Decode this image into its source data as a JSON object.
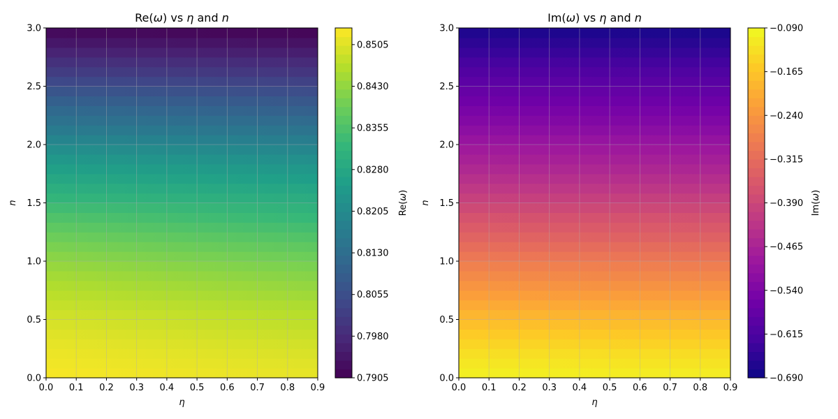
{
  "chart_data": [
    {
      "type": "heatmap",
      "panel_id": "re",
      "title": "Re(ω) vs η and n",
      "title_parts": [
        "Re(",
        "ω",
        ") vs ",
        "η",
        " and ",
        "n"
      ],
      "xlabel": "η",
      "ylabel": "n",
      "xlim": [
        0.0,
        0.9
      ],
      "ylim": [
        0.0,
        3.0
      ],
      "xticks": [
        "0.0",
        "0.1",
        "0.2",
        "0.3",
        "0.4",
        "0.5",
        "0.6",
        "0.7",
        "0.8",
        "0.9"
      ],
      "yticks": [
        "0.0",
        "0.5",
        "1.0",
        "1.5",
        "2.0",
        "2.5",
        "3.0"
      ],
      "grid": true,
      "colormap": "viridis",
      "z_range": [
        0.7905,
        0.8535
      ],
      "colorbar": {
        "label": "Re(ω)",
        "label_parts": [
          "Re(",
          "ω",
          ")"
        ],
        "ticks": [
          "0.7905",
          "0.7980",
          "0.8055",
          "0.8130",
          "0.8205",
          "0.8280",
          "0.8355",
          "0.8430",
          "0.8505"
        ]
      },
      "profile": {
        "n": [
          0.0,
          0.2,
          0.4,
          0.6,
          0.8,
          1.0,
          1.2,
          1.4,
          1.6,
          1.8,
          2.0,
          2.2,
          2.4,
          2.6,
          2.8,
          3.0
        ],
        "value_at_eta0": [
          0.853,
          0.852,
          0.8505,
          0.8485,
          0.846,
          0.843,
          0.8395,
          0.8355,
          0.8305,
          0.826,
          0.8205,
          0.8145,
          0.809,
          0.8025,
          0.7965,
          0.7912
        ],
        "value_at_eta09": [
          0.8515,
          0.85,
          0.848,
          0.846,
          0.843,
          0.84,
          0.836,
          0.832,
          0.828,
          0.8235,
          0.8185,
          0.8125,
          0.807,
          0.801,
          0.7955,
          0.7905
        ]
      }
    },
    {
      "type": "heatmap",
      "panel_id": "im",
      "title": "Im(ω) vs η and n",
      "title_parts": [
        "Im(",
        "ω",
        ") vs ",
        "η",
        " and ",
        "n"
      ],
      "xlabel": "η",
      "ylabel": "n",
      "xlim": [
        0.0,
        0.9
      ],
      "ylim": [
        0.0,
        3.0
      ],
      "xticks": [
        "0.0",
        "0.1",
        "0.2",
        "0.3",
        "0.4",
        "0.5",
        "0.6",
        "0.7",
        "0.8",
        "0.9"
      ],
      "yticks": [
        "0.0",
        "0.5",
        "1.0",
        "1.5",
        "2.0",
        "2.5",
        "3.0"
      ],
      "grid": true,
      "colormap": "plasma",
      "z_range": [
        -0.69,
        -0.09
      ],
      "colorbar": {
        "label": "Im(ω)",
        "label_parts": [
          "Im(",
          "ω",
          ")"
        ],
        "ticks": [
          "−0.690",
          "−0.615",
          "−0.540",
          "−0.465",
          "−0.390",
          "−0.315",
          "−0.240",
          "−0.165",
          "−0.090"
        ]
      },
      "profile": {
        "n": [
          0.0,
          0.2,
          0.4,
          0.6,
          0.8,
          1.0,
          1.2,
          1.4,
          1.6,
          1.8,
          2.0,
          2.2,
          2.4,
          2.6,
          2.8,
          3.0
        ],
        "value_at_eta0": [
          -0.1,
          -0.125,
          -0.16,
          -0.2,
          -0.245,
          -0.285,
          -0.33,
          -0.37,
          -0.415,
          -0.455,
          -0.49,
          -0.53,
          -0.565,
          -0.6,
          -0.64,
          -0.675
        ],
        "value_at_eta09": [
          -0.105,
          -0.13,
          -0.165,
          -0.205,
          -0.25,
          -0.29,
          -0.335,
          -0.375,
          -0.42,
          -0.46,
          -0.495,
          -0.535,
          -0.57,
          -0.605,
          -0.645,
          -0.68
        ]
      }
    }
  ]
}
